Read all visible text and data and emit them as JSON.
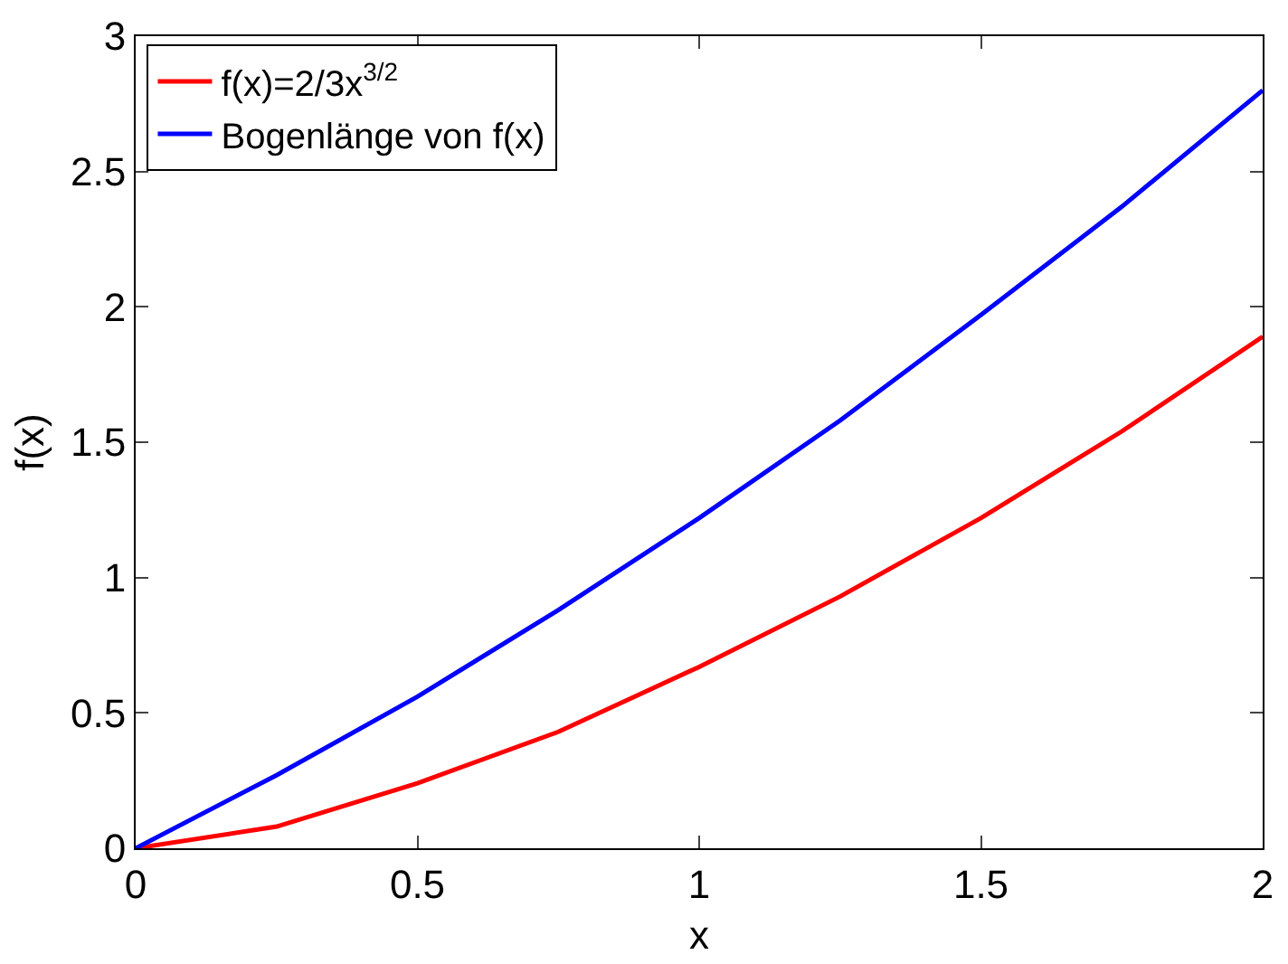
{
  "chart_data": {
    "type": "line",
    "xlabel": "x",
    "ylabel": "f(x)",
    "x": [
      0,
      0.25,
      0.5,
      0.75,
      1,
      1.25,
      1.5,
      1.75,
      2
    ],
    "series": [
      {
        "name": "f(x)=2/3x$^{3/2}$",
        "color": "#ff0000",
        "values": [
          0,
          0.08,
          0.24,
          0.43,
          0.67,
          0.93,
          1.22,
          1.54,
          1.89
        ]
      },
      {
        "name": "Bogenlänge von f(x)",
        "color": "#0000ff",
        "values": [
          0,
          0.27,
          0.56,
          0.88,
          1.22,
          1.58,
          1.97,
          2.37,
          2.8
        ]
      }
    ],
    "xlim": [
      0,
      2
    ],
    "xticks": [
      0,
      0.5,
      1,
      1.5,
      2
    ],
    "ylim": [
      0,
      3
    ],
    "yticks": [
      0,
      0.5,
      1,
      1.5,
      2,
      2.5,
      3
    ],
    "grid": false,
    "legend": "top left",
    "marker": "none",
    "line_style": "solid"
  }
}
